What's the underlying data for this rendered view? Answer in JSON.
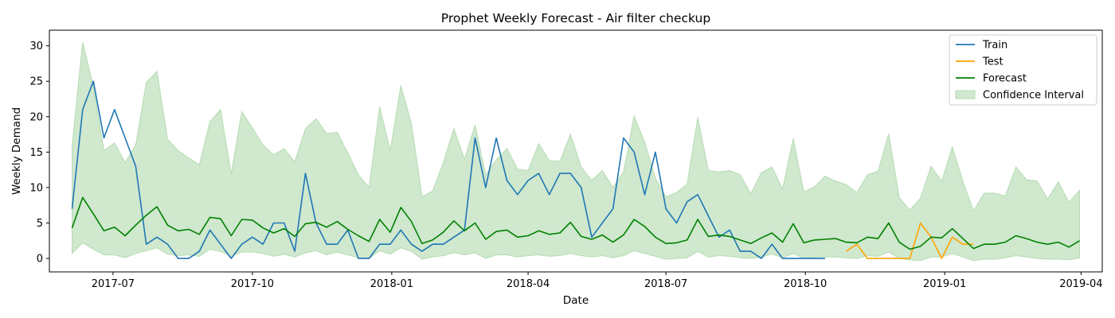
{
  "chart_data": {
    "type": "line",
    "title": "Prophet Weekly Forecast - Air filter checkup",
    "xlabel": "Date",
    "ylabel": "Weekly Demand",
    "x_range": [
      "2017-05-20",
      "2019-04-15"
    ],
    "ylim": [
      -1.9,
      32.2
    ],
    "x_ticks": [
      {
        "date": "2017-07-01",
        "label": "2017-07"
      },
      {
        "date": "2017-10-01",
        "label": "2017-10"
      },
      {
        "date": "2018-01-01",
        "label": "2018-01"
      },
      {
        "date": "2018-04-01",
        "label": "2018-04"
      },
      {
        "date": "2018-07-01",
        "label": "2018-07"
      },
      {
        "date": "2018-10-01",
        "label": "2018-10"
      },
      {
        "date": "2019-01-01",
        "label": "2019-01"
      },
      {
        "date": "2019-04-01",
        "label": "2019-04"
      }
    ],
    "y_ticks": [
      0,
      5,
      10,
      15,
      20,
      25,
      30
    ],
    "grid": false,
    "legend_position": "top-right",
    "legend": [
      "Train",
      "Test",
      "Forecast",
      "Confidence Interval"
    ],
    "colors": {
      "train": "#1f77b4",
      "test": "#ffa500",
      "forecast": "#008000",
      "interval": "#b6dbb3"
    },
    "first_week": "2017-06-04",
    "test_first_week": "2018-10-28",
    "series": [
      {
        "name": "Train",
        "values": [
          7,
          21,
          25,
          17,
          21,
          17,
          13,
          2,
          3,
          2,
          0,
          0,
          1,
          4,
          2,
          0,
          2,
          3,
          2,
          5,
          5,
          1,
          12,
          5,
          2,
          2,
          4,
          0,
          0,
          2,
          2,
          4,
          2,
          1,
          2,
          2,
          3,
          4,
          17,
          10,
          17,
          11,
          9,
          11,
          12,
          9,
          12,
          12,
          10,
          3,
          5,
          7,
          17,
          15,
          9,
          15,
          7,
          5,
          8,
          9,
          6,
          3,
          4,
          1,
          1,
          0,
          2,
          0,
          0,
          0,
          0,
          0
        ]
      },
      {
        "name": "Test",
        "values": [
          1,
          2,
          0,
          0,
          0,
          0,
          0,
          5,
          3,
          0,
          3,
          2,
          2
        ]
      },
      {
        "name": "Forecast",
        "values": [
          4.3,
          8.6,
          6.3,
          3.9,
          4.4,
          3.2,
          4.7,
          6.1,
          7.3,
          4.7,
          3.9,
          4.1,
          3.4,
          5.8,
          5.6,
          3.2,
          5.5,
          5.4,
          4.3,
          3.6,
          4.2,
          3.1,
          4.9,
          5.1,
          4.4,
          5.2,
          4.1,
          3.2,
          2.4,
          5.5,
          3.7,
          7.2,
          5.2,
          2.1,
          2.6,
          3.7,
          5.3,
          3.9,
          5.0,
          2.7,
          3.8,
          4.0,
          3.0,
          3.2,
          3.9,
          3.4,
          3.6,
          5.1,
          3.1,
          2.7,
          3.3,
          2.3,
          3.3,
          5.5,
          4.5,
          3.0,
          2.1,
          2.2,
          2.6,
          5.5,
          3.1,
          3.3,
          3.1,
          2.6,
          2.1,
          2.9,
          3.6,
          2.3,
          4.9,
          2.2,
          2.6,
          2.7,
          2.8,
          2.3,
          2.2,
          3.0,
          2.8,
          5.0,
          2.3,
          1.3,
          1.7,
          3.0,
          2.9,
          4.2,
          2.8,
          1.4,
          2.0,
          2.0,
          2.3,
          3.2,
          2.8,
          2.3,
          2.0,
          2.3,
          1.6,
          2.5
        ]
      },
      {
        "name": "Confidence Interval",
        "lower": [
          0.7,
          2.2,
          1.3,
          0.5,
          0.5,
          0.1,
          0.7,
          1.1,
          1.5,
          0.6,
          0.4,
          0.5,
          0.3,
          1.3,
          1.0,
          0.3,
          0.9,
          0.9,
          0.7,
          0.3,
          0.6,
          0.2,
          0.8,
          1.1,
          0.5,
          0.9,
          0.5,
          0.1,
          0.0,
          1.1,
          0.6,
          1.5,
          1.0,
          -0.1,
          0.2,
          0.4,
          0.8,
          0.5,
          0.8,
          0.0,
          0.5,
          0.5,
          0.2,
          0.4,
          0.5,
          0.3,
          0.4,
          0.7,
          0.4,
          0.2,
          0.4,
          0.1,
          0.4,
          1.1,
          0.7,
          0.3,
          -0.1,
          0.0,
          0.1,
          1.0,
          0.2,
          0.4,
          0.3,
          0.1,
          0.0,
          0.2,
          0.6,
          0.1,
          0.7,
          0.0,
          0.2,
          0.2,
          0.2,
          0.1,
          0.0,
          0.4,
          0.3,
          0.9,
          0.0,
          -0.2,
          -0.3,
          0.2,
          0.2,
          0.7,
          0.2,
          -0.3,
          -0.1,
          -0.1,
          0.1,
          0.4,
          0.2,
          0.0,
          -0.1,
          -0.1,
          -0.2,
          0.1
        ],
        "upper": [
          15.8,
          30.5,
          24.3,
          15.2,
          16.3,
          13.5,
          16.0,
          24.8,
          26.4,
          16.8,
          15.2,
          14.2,
          13.2,
          19.3,
          21.0,
          11.9,
          20.7,
          18.4,
          16.0,
          14.6,
          15.5,
          13.6,
          18.3,
          19.7,
          17.6,
          17.8,
          14.9,
          11.8,
          10.0,
          21.4,
          15.2,
          24.4,
          19.0,
          8.7,
          9.5,
          13.5,
          18.3,
          14.0,
          18.8,
          11.8,
          13.9,
          15.5,
          12.6,
          12.4,
          16.2,
          13.8,
          13.7,
          17.5,
          12.9,
          11.0,
          12.4,
          10.0,
          12.2,
          20.1,
          16.4,
          11.3,
          8.7,
          9.3,
          10.5,
          19.9,
          12.4,
          12.2,
          12.4,
          11.8,
          9.1,
          12.1,
          12.9,
          9.8,
          16.9,
          9.4,
          10.1,
          11.6,
          10.9,
          10.4,
          9.3,
          11.8,
          12.3,
          17.6,
          8.6,
          6.8,
          8.5,
          13.0,
          10.9,
          15.7,
          10.9,
          6.7,
          9.2,
          9.2,
          8.8,
          12.9,
          11.1,
          10.9,
          8.4,
          10.8,
          7.9,
          9.6
        ]
      }
    ]
  }
}
